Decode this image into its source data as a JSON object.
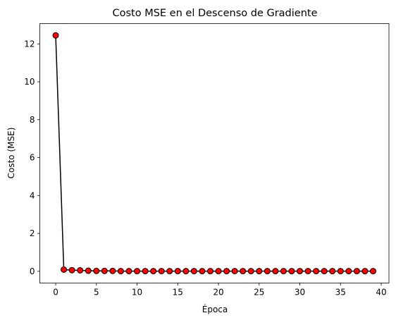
{
  "chart_data": {
    "type": "line",
    "title": "Costo MSE en el Descenso de Gradiente",
    "xlabel": "Época",
    "ylabel": "Costo (MSE)",
    "x": [
      0,
      1,
      2,
      3,
      4,
      5,
      6,
      7,
      8,
      9,
      10,
      11,
      12,
      13,
      14,
      15,
      16,
      17,
      18,
      19,
      20,
      21,
      22,
      23,
      24,
      25,
      26,
      27,
      28,
      29,
      30,
      31,
      32,
      33,
      34,
      35,
      36,
      37,
      38,
      39
    ],
    "series": [
      {
        "name": "MSE",
        "color": "#000000",
        "marker_color": "#ff0000",
        "values": [
          12.45,
          0.09,
          0.06,
          0.05,
          0.03,
          0.02,
          0.02,
          0.02,
          0.01,
          0.01,
          0.01,
          0.01,
          0.01,
          0.01,
          0.01,
          0.01,
          0.01,
          0.01,
          0.01,
          0.01,
          0.01,
          0.01,
          0.01,
          0.01,
          0.01,
          0.01,
          0.01,
          0.01,
          0.01,
          0.01,
          0.01,
          0.01,
          0.01,
          0.01,
          0.01,
          0.01,
          0.01,
          0.01,
          0.01,
          0.01
        ]
      }
    ],
    "xlim": [
      -1.95,
      40.95
    ],
    "xticks": [
      0,
      5,
      10,
      15,
      20,
      25,
      30,
      35,
      40
    ],
    "ylim": [
      -0.62,
      13.07
    ],
    "yticks": [
      0,
      2,
      4,
      6,
      8,
      10,
      12
    ],
    "grid": false
  }
}
